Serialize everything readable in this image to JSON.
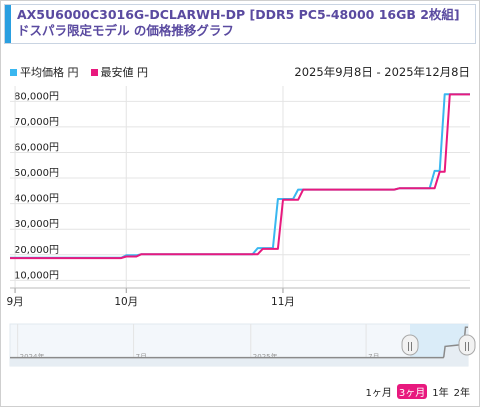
{
  "header": {
    "title": "AX5U6000C3016G-DCLARWH-DP [DDR5 PC5-48000 16GB 2枚組] ドスパラ限定モデル の価格推移グラフ"
  },
  "legend": {
    "avg_label": "平均価格 円",
    "min_label": "最安値 円"
  },
  "date_range": "2025年9月8日 - 2025年12月8日",
  "colors": {
    "avg": "#3ab7f0",
    "min": "#e8197e",
    "accent": "#2a9fe0",
    "title": "#5a4aa0"
  },
  "chart_data": {
    "type": "line",
    "x_unit": "date",
    "x_range": [
      "2025-09-08",
      "2025-12-08"
    ],
    "xticks": [
      {
        "date": "2025-09-09",
        "label": "9月"
      },
      {
        "date": "2025-10-01",
        "label": "10月"
      },
      {
        "date": "2025-11-01",
        "label": "11月"
      }
    ],
    "ylim": [
      7000,
      86000
    ],
    "yticks": [
      {
        "value": 10000,
        "label": "10,000円"
      },
      {
        "value": 20000,
        "label": "20,000円"
      },
      {
        "value": 30000,
        "label": "30,000円"
      },
      {
        "value": 40000,
        "label": "40,000円"
      },
      {
        "value": 50000,
        "label": "50,000円"
      },
      {
        "value": 60000,
        "label": "60,000円"
      },
      {
        "value": 70000,
        "label": "70,000円"
      },
      {
        "value": 80000,
        "label": "80,000円"
      }
    ],
    "grid": true,
    "series": [
      {
        "name": "平均価格 円",
        "color": "#3ab7f0",
        "points": [
          [
            "2025-09-08",
            18800
          ],
          [
            "2025-09-30",
            18800
          ],
          [
            "2025-10-01",
            19800
          ],
          [
            "2025-10-03",
            19800
          ],
          [
            "2025-10-04",
            20200
          ],
          [
            "2025-10-26",
            20200
          ],
          [
            "2025-10-27",
            22600
          ],
          [
            "2025-10-30",
            22600
          ],
          [
            "2025-10-31",
            41800
          ],
          [
            "2025-11-03",
            41800
          ],
          [
            "2025-11-04",
            45500
          ],
          [
            "2025-11-23",
            45500
          ],
          [
            "2025-11-24",
            46000
          ],
          [
            "2025-11-30",
            46000
          ],
          [
            "2025-12-01",
            52800
          ],
          [
            "2025-12-02",
            52800
          ],
          [
            "2025-12-03",
            82800
          ],
          [
            "2025-12-08",
            82800
          ]
        ]
      },
      {
        "name": "最安値 円",
        "color": "#e8197e",
        "points": [
          [
            "2025-09-08",
            18700
          ],
          [
            "2025-09-30",
            18700
          ],
          [
            "2025-10-01",
            19300
          ],
          [
            "2025-10-03",
            19300
          ],
          [
            "2025-10-04",
            20200
          ],
          [
            "2025-10-27",
            20200
          ],
          [
            "2025-10-28",
            22300
          ],
          [
            "2025-10-31",
            22300
          ],
          [
            "2025-11-01",
            41500
          ],
          [
            "2025-11-04",
            41500
          ],
          [
            "2025-11-05",
            45500
          ],
          [
            "2025-11-23",
            45500
          ],
          [
            "2025-11-24",
            46000
          ],
          [
            "2025-12-01",
            46000
          ],
          [
            "2025-12-02",
            52500
          ],
          [
            "2025-12-03",
            52500
          ],
          [
            "2025-12-04",
            82700
          ],
          [
            "2025-12-08",
            82700
          ]
        ]
      }
    ]
  },
  "navigator": {
    "labels": [
      {
        "date": "2024-01-01",
        "text": "2024年"
      },
      {
        "date": "2024-07-01",
        "text": "7月"
      },
      {
        "date": "2025-01-01",
        "text": "2025年"
      },
      {
        "date": "2025-07-01",
        "text": "7月"
      }
    ],
    "x_range": [
      "2023-12-20",
      "2025-12-08"
    ],
    "selected_range": [
      "2025-09-08",
      "2025-12-08"
    ],
    "handle_glyph": "||",
    "series": [
      [
        "2023-12-20",
        18000
      ],
      [
        "2025-10-30",
        18000
      ],
      [
        "2025-10-31",
        20000
      ],
      [
        "2025-11-02",
        42000
      ],
      [
        "2025-11-30",
        46000
      ],
      [
        "2025-12-02",
        53000
      ],
      [
        "2025-12-04",
        83000
      ],
      [
        "2025-12-08",
        83000
      ]
    ],
    "ylim": [
      0,
      90000
    ]
  },
  "range_buttons": [
    {
      "label": "1ヶ月",
      "active": false
    },
    {
      "label": "3ヶ月",
      "active": true
    },
    {
      "label": "1年",
      "active": false
    },
    {
      "label": "2年",
      "active": false
    }
  ]
}
